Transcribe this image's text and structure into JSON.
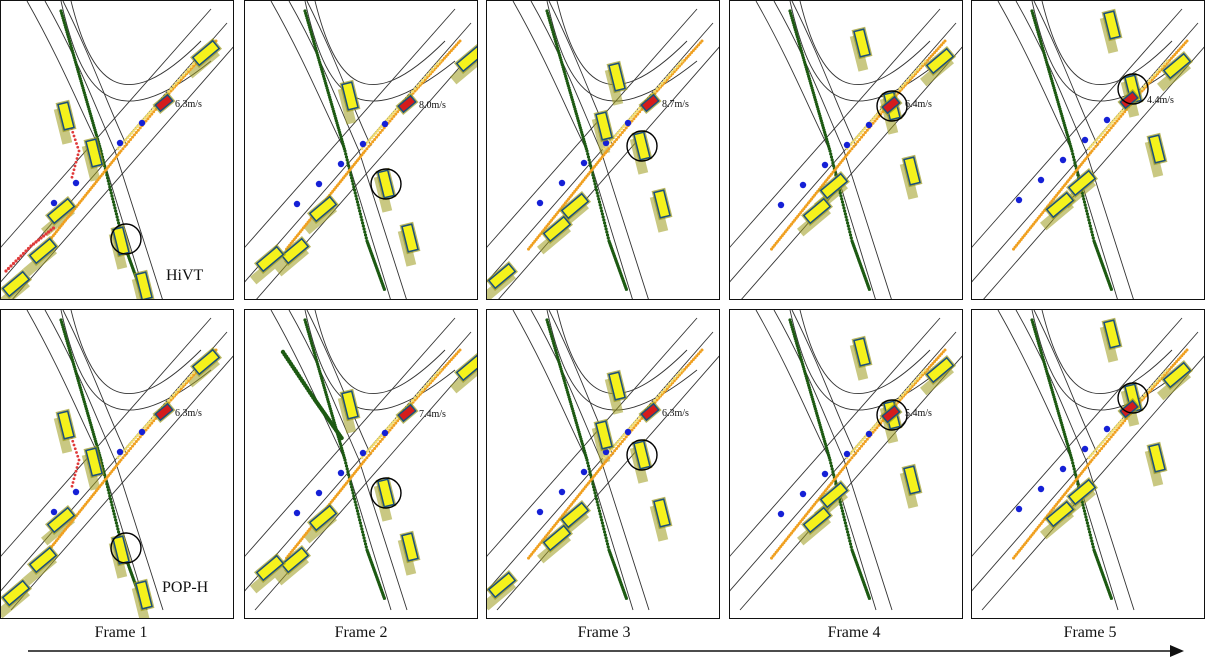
{
  "models": [
    {
      "name": "HiVT",
      "speeds": [
        "6.3m/s",
        "8.0m/s",
        "8.7m/s",
        "6.4m/s",
        "4.4m/s"
      ]
    },
    {
      "name": "POP-H",
      "speeds": [
        "6.3m/s",
        "7.4m/s",
        "6.3m/s",
        "5.4m/s",
        ""
      ]
    }
  ],
  "frames": [
    "Frame 1",
    "Frame 2",
    "Frame 3",
    "Frame 4",
    "Frame 5"
  ],
  "colors": {
    "road": "#333333",
    "vehicle_fill": "#f5f21c",
    "vehicle_border": "#1c4f7a",
    "ego_vehicle": "#d41c1c",
    "history_blue": "#1520d6",
    "pred_orange": "#f0a020",
    "pred_green": "#1d5a12",
    "pred_red": "#e03a3a",
    "pred_yellow": "#f1dd72",
    "trail_olive": "#9c9a1c",
    "circle": "#000000"
  }
}
